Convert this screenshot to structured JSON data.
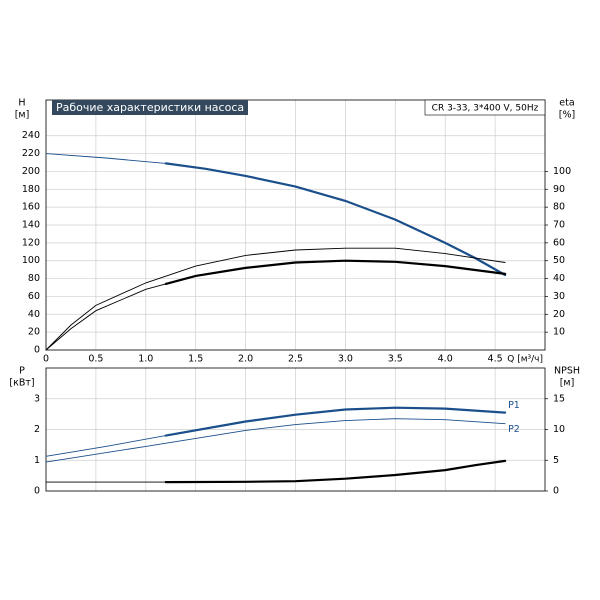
{
  "chart_data": [
    {
      "type": "line",
      "title": "Рабочие характеристики насоса",
      "subtitle": "CR 3-33, 3*400 V, 50Hz",
      "ylabel": "H",
      "yunit": "[м]",
      "y2label": "eta",
      "y2unit": "[%]",
      "xlabel": "Q [м³/ч]",
      "xlim": [
        0,
        5
      ],
      "xticks": [
        0,
        0.5,
        {
          "value": 1,
          "label": "1.0"
        },
        1.5,
        {
          "value": 2,
          "label": "2.0"
        },
        2.5,
        {
          "value": 3,
          "label": "3.0"
        },
        3.5,
        {
          "value": 4,
          "label": "4.0"
        },
        4.5
      ],
      "ylim": [
        0,
        280
      ],
      "yticks": [
        0,
        20,
        40,
        60,
        80,
        100,
        120,
        140,
        160,
        180,
        200,
        220,
        240
      ],
      "y2lim": [
        0,
        140
      ],
      "y2ticks": [
        10,
        20,
        30,
        40,
        50,
        60,
        70,
        80,
        90,
        100
      ],
      "grid": true,
      "series": [
        {
          "color": "#1a4f8b",
          "line_width": 0.9,
          "x": [
            0,
            0.6,
            1.2
          ],
          "values": [
            220,
            215,
            209
          ]
        },
        {
          "color": "#1a4f8b",
          "line_width": 2.2,
          "x": [
            1.2,
            1.6,
            2.0,
            2.5,
            3.0,
            3.5,
            4.0,
            4.3,
            4.6
          ],
          "values": [
            209,
            203,
            195,
            183,
            167,
            146,
            120,
            103,
            84
          ]
        },
        {
          "color": "#000000",
          "line_width": 0.9,
          "axis": "y2",
          "x": [
            0,
            0.25,
            0.5,
            1.0,
            1.5,
            2.0,
            2.5,
            3.0,
            3.5,
            4.0,
            4.6
          ],
          "values": [
            0,
            14,
            25,
            37.6,
            47,
            53,
            56,
            57,
            57,
            54,
            49
          ]
        },
        {
          "color": "#000000",
          "line_width": 0.9,
          "axis": "y2",
          "x": [
            0,
            0.25,
            0.5,
            1.0,
            1.2
          ],
          "values": [
            0,
            12,
            22,
            34,
            37
          ]
        },
        {
          "color": "#000000",
          "line_width": 2.2,
          "axis": "y2",
          "x": [
            1.2,
            1.5,
            2.0,
            2.5,
            3.0,
            3.5,
            4.0,
            4.6
          ],
          "values": [
            37,
            41.5,
            46,
            49,
            50,
            49.4,
            47,
            42.6
          ]
        }
      ]
    },
    {
      "type": "line",
      "ylabel": "P",
      "yunit": "[кВт]",
      "y2label": "NPSH",
      "y2unit": "[м]",
      "xlim": [
        0,
        5
      ],
      "xgrid": [
        0,
        0.5,
        1,
        1.5,
        2,
        2.5,
        3,
        3.5,
        4,
        4.5
      ],
      "ylim": [
        0,
        4
      ],
      "yticks": [
        0,
        1,
        2,
        3
      ],
      "y2lim": [
        0,
        20
      ],
      "y2ticks": [
        0,
        5,
        10,
        15
      ],
      "grid": true,
      "series": [
        {
          "color": "#1a4f8b",
          "line_width": 0.9,
          "x": [
            0,
            0.6,
            1.2
          ],
          "values": [
            1.13,
            1.45,
            1.8
          ]
        },
        {
          "name": "P1",
          "color": "#1a4f8b",
          "line_width": 2.2,
          "x": [
            1.2,
            2.0,
            2.5,
            3.0,
            3.5,
            4.0,
            4.6
          ],
          "values": [
            1.8,
            2.26,
            2.48,
            2.65,
            2.71,
            2.68,
            2.55
          ]
        },
        {
          "name": "P2",
          "color": "#1a4f8b",
          "line_width": 0.9,
          "x": [
            0,
            1.0,
            2.0,
            2.5,
            3.0,
            3.5,
            4.0,
            4.6
          ],
          "values": [
            0.94,
            1.45,
            1.97,
            2.16,
            2.29,
            2.35,
            2.32,
            2.19
          ]
        },
        {
          "color": "#000000",
          "line_width": 0.9,
          "axis": "y2",
          "x": [
            0,
            1.2
          ],
          "values": [
            1.45,
            1.45
          ]
        },
        {
          "color": "#000000",
          "line_width": 2.2,
          "axis": "y2",
          "x": [
            1.2,
            2.0,
            2.5,
            3.0,
            3.5,
            4.0,
            4.3,
            4.6
          ],
          "values": [
            1.45,
            1.5,
            1.6,
            2.0,
            2.6,
            3.4,
            4.2,
            4.9
          ]
        }
      ]
    }
  ]
}
